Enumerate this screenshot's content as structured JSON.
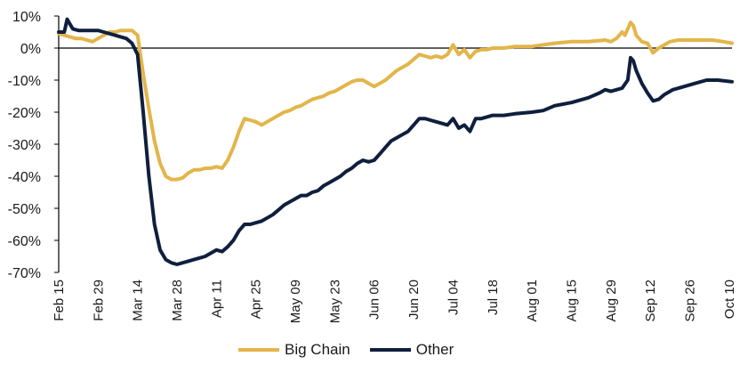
{
  "chart_data": {
    "type": "line",
    "title": "",
    "xlabel": "",
    "ylabel": "",
    "ylim": [
      -70,
      10
    ],
    "ytick_values": [
      10,
      0,
      -10,
      -20,
      -30,
      -40,
      -50,
      -60,
      -70
    ],
    "ytick_labels": [
      "10%",
      "0%",
      "-10%",
      "-20%",
      "-30%",
      "-40%",
      "-50%",
      "-60%",
      "-70%"
    ],
    "x_range": [
      "Feb 15",
      "Oct 11"
    ],
    "xtick_labels": [
      "Feb 15",
      "Feb 29",
      "Mar 14",
      "Mar 28",
      "Apr 11",
      "Apr 25",
      "May 09",
      "May 23",
      "Jun 06",
      "Jun 20",
      "Jul 04",
      "Jul 18",
      "Aug 01",
      "Aug 15",
      "Aug 29",
      "Sep 12",
      "Sep 26",
      "Oct 10"
    ],
    "zero_line": true,
    "grid": false,
    "legend_position": "bottom",
    "series": [
      {
        "name": "Big Chain",
        "color": "#E3B54A",
        "points": [
          [
            "Feb 15",
            4.5
          ],
          [
            "Feb 17",
            4
          ],
          [
            "Feb 19",
            3.5
          ],
          [
            "Feb 21",
            3
          ],
          [
            "Feb 23",
            3
          ],
          [
            "Feb 25",
            2.5
          ],
          [
            "Feb 27",
            2
          ],
          [
            "Feb 29",
            3
          ],
          [
            "Mar 02",
            4
          ],
          [
            "Mar 04",
            5
          ],
          [
            "Mar 06",
            5
          ],
          [
            "Mar 08",
            5.5
          ],
          [
            "Mar 10",
            5.5
          ],
          [
            "Mar 12",
            5.5
          ],
          [
            "Mar 14",
            4
          ],
          [
            "Mar 16",
            -8
          ],
          [
            "Mar 18",
            -19
          ],
          [
            "Mar 20",
            -29
          ],
          [
            "Mar 22",
            -36
          ],
          [
            "Mar 24",
            -40
          ],
          [
            "Mar 26",
            -41
          ],
          [
            "Mar 28",
            -41
          ],
          [
            "Mar 30",
            -40.5
          ],
          [
            "Apr 01",
            -39
          ],
          [
            "Apr 03",
            -38
          ],
          [
            "Apr 05",
            -38
          ],
          [
            "Apr 07",
            -37.5
          ],
          [
            "Apr 09",
            -37.5
          ],
          [
            "Apr 11",
            -37
          ],
          [
            "Apr 13",
            -37.5
          ],
          [
            "Apr 15",
            -35
          ],
          [
            "Apr 17",
            -31
          ],
          [
            "Apr 19",
            -26
          ],
          [
            "Apr 21",
            -22
          ],
          [
            "Apr 23",
            -22.5
          ],
          [
            "Apr 25",
            -23
          ],
          [
            "Apr 27",
            -24
          ],
          [
            "Apr 29",
            -23
          ],
          [
            "May 01",
            -22
          ],
          [
            "May 03",
            -21
          ],
          [
            "May 05",
            -20
          ],
          [
            "May 07",
            -19.5
          ],
          [
            "May 09",
            -18.5
          ],
          [
            "May 11",
            -18
          ],
          [
            "May 13",
            -17
          ],
          [
            "May 15",
            -16
          ],
          [
            "May 17",
            -15.5
          ],
          [
            "May 19",
            -15
          ],
          [
            "May 21",
            -14
          ],
          [
            "May 23",
            -13.5
          ],
          [
            "May 25",
            -12.5
          ],
          [
            "May 27",
            -11.5
          ],
          [
            "May 29",
            -10.5
          ],
          [
            "May 31",
            -10
          ],
          [
            "Jun 02",
            -10
          ],
          [
            "Jun 04",
            -11
          ],
          [
            "Jun 06",
            -12
          ],
          [
            "Jun 08",
            -11
          ],
          [
            "Jun 10",
            -10
          ],
          [
            "Jun 12",
            -8.5
          ],
          [
            "Jun 14",
            -7
          ],
          [
            "Jun 16",
            -6
          ],
          [
            "Jun 18",
            -5
          ],
          [
            "Jun 20",
            -3.5
          ],
          [
            "Jun 22",
            -2
          ],
          [
            "Jun 24",
            -2.5
          ],
          [
            "Jun 26",
            -3
          ],
          [
            "Jun 28",
            -2.5
          ],
          [
            "Jun 30",
            -3
          ],
          [
            "Jul 02",
            -2
          ],
          [
            "Jul 04",
            1
          ],
          [
            "Jul 06",
            -2
          ],
          [
            "Jul 08",
            -0.5
          ],
          [
            "Jul 10",
            -3
          ],
          [
            "Jul 12",
            -1
          ],
          [
            "Jul 14",
            -0.5
          ],
          [
            "Jul 16",
            -0.5
          ],
          [
            "Jul 18",
            0
          ],
          [
            "Jul 22",
            0
          ],
          [
            "Jul 26",
            0.5
          ],
          [
            "Aug 01",
            0.5
          ],
          [
            "Aug 05",
            1
          ],
          [
            "Aug 09",
            1.5
          ],
          [
            "Aug 15",
            2
          ],
          [
            "Aug 21",
            2
          ],
          [
            "Aug 27",
            2.5
          ],
          [
            "Aug 29",
            2
          ],
          [
            "Aug 31",
            3
          ],
          [
            "Sep 02",
            5
          ],
          [
            "Sep 03",
            4
          ],
          [
            "Sep 04",
            6
          ],
          [
            "Sep 05",
            8
          ],
          [
            "Sep 06",
            7
          ],
          [
            "Sep 07",
            4
          ],
          [
            "Sep 09",
            2
          ],
          [
            "Sep 11",
            1.5
          ],
          [
            "Sep 13",
            -1.5
          ],
          [
            "Sep 15",
            0
          ],
          [
            "Sep 17",
            1
          ],
          [
            "Sep 19",
            2
          ],
          [
            "Sep 22",
            2.5
          ],
          [
            "Sep 26",
            2.5
          ],
          [
            "Sep 30",
            2.5
          ],
          [
            "Oct 04",
            2.5
          ],
          [
            "Oct 08",
            2
          ],
          [
            "Oct 11",
            1.5
          ]
        ]
      },
      {
        "name": "Other",
        "color": "#0F1F3D",
        "points": [
          [
            "Feb 15",
            5
          ],
          [
            "Feb 17",
            5
          ],
          [
            "Feb 18",
            9
          ],
          [
            "Feb 20",
            6
          ],
          [
            "Feb 22",
            5.5
          ],
          [
            "Feb 24",
            5.5
          ],
          [
            "Feb 26",
            5.5
          ],
          [
            "Feb 29",
            5.5
          ],
          [
            "Mar 02",
            5
          ],
          [
            "Mar 04",
            4.5
          ],
          [
            "Mar 06",
            4
          ],
          [
            "Mar 08",
            3.5
          ],
          [
            "Mar 10",
            3
          ],
          [
            "Mar 12",
            1.5
          ],
          [
            "Mar 14",
            -2
          ],
          [
            "Mar 16",
            -20
          ],
          [
            "Mar 18",
            -40
          ],
          [
            "Mar 20",
            -55
          ],
          [
            "Mar 22",
            -63
          ],
          [
            "Mar 24",
            -66
          ],
          [
            "Mar 26",
            -67
          ],
          [
            "Mar 28",
            -67.5
          ],
          [
            "Mar 30",
            -67
          ],
          [
            "Apr 01",
            -66.5
          ],
          [
            "Apr 03",
            -66
          ],
          [
            "Apr 05",
            -65.5
          ],
          [
            "Apr 07",
            -65
          ],
          [
            "Apr 09",
            -64
          ],
          [
            "Apr 11",
            -63
          ],
          [
            "Apr 13",
            -63.5
          ],
          [
            "Apr 15",
            -62
          ],
          [
            "Apr 17",
            -60
          ],
          [
            "Apr 19",
            -57
          ],
          [
            "Apr 21",
            -55
          ],
          [
            "Apr 23",
            -55
          ],
          [
            "Apr 25",
            -54.5
          ],
          [
            "Apr 27",
            -54
          ],
          [
            "Apr 29",
            -53
          ],
          [
            "May 01",
            -52
          ],
          [
            "May 03",
            -50.5
          ],
          [
            "May 05",
            -49
          ],
          [
            "May 07",
            -48
          ],
          [
            "May 09",
            -47
          ],
          [
            "May 11",
            -46
          ],
          [
            "May 13",
            -46
          ],
          [
            "May 15",
            -45
          ],
          [
            "May 17",
            -44.5
          ],
          [
            "May 19",
            -43
          ],
          [
            "May 21",
            -42
          ],
          [
            "May 23",
            -41
          ],
          [
            "May 25",
            -40
          ],
          [
            "May 27",
            -38.5
          ],
          [
            "May 29",
            -37.5
          ],
          [
            "May 31",
            -36
          ],
          [
            "Jun 02",
            -35
          ],
          [
            "Jun 04",
            -35.5
          ],
          [
            "Jun 06",
            -35
          ],
          [
            "Jun 08",
            -33
          ],
          [
            "Jun 10",
            -31
          ],
          [
            "Jun 12",
            -29
          ],
          [
            "Jun 14",
            -28
          ],
          [
            "Jun 16",
            -27
          ],
          [
            "Jun 18",
            -26
          ],
          [
            "Jun 20",
            -24
          ],
          [
            "Jun 22",
            -22
          ],
          [
            "Jun 24",
            -22
          ],
          [
            "Jun 26",
            -22.5
          ],
          [
            "Jun 28",
            -23
          ],
          [
            "Jun 30",
            -23.5
          ],
          [
            "Jul 02",
            -24
          ],
          [
            "Jul 04",
            -22
          ],
          [
            "Jul 06",
            -25
          ],
          [
            "Jul 08",
            -24
          ],
          [
            "Jul 10",
            -26
          ],
          [
            "Jul 12",
            -22
          ],
          [
            "Jul 14",
            -22
          ],
          [
            "Jul 16",
            -21.5
          ],
          [
            "Jul 18",
            -21
          ],
          [
            "Jul 22",
            -21
          ],
          [
            "Jul 26",
            -20.5
          ],
          [
            "Aug 01",
            -20
          ],
          [
            "Aug 05",
            -19.5
          ],
          [
            "Aug 09",
            -18
          ],
          [
            "Aug 15",
            -17
          ],
          [
            "Aug 21",
            -15.5
          ],
          [
            "Aug 25",
            -14
          ],
          [
            "Aug 27",
            -13
          ],
          [
            "Aug 29",
            -13.5
          ],
          [
            "Aug 31",
            -13
          ],
          [
            "Sep 02",
            -12.5
          ],
          [
            "Sep 04",
            -10
          ],
          [
            "Sep 05",
            -3
          ],
          [
            "Sep 06",
            -4
          ],
          [
            "Sep 07",
            -7
          ],
          [
            "Sep 09",
            -11
          ],
          [
            "Sep 11",
            -14
          ],
          [
            "Sep 13",
            -16.5
          ],
          [
            "Sep 15",
            -16
          ],
          [
            "Sep 17",
            -14.5
          ],
          [
            "Sep 20",
            -13
          ],
          [
            "Sep 24",
            -12
          ],
          [
            "Sep 28",
            -11
          ],
          [
            "Oct 02",
            -10
          ],
          [
            "Oct 06",
            -10
          ],
          [
            "Oct 11",
            -10.5
          ]
        ]
      }
    ]
  }
}
